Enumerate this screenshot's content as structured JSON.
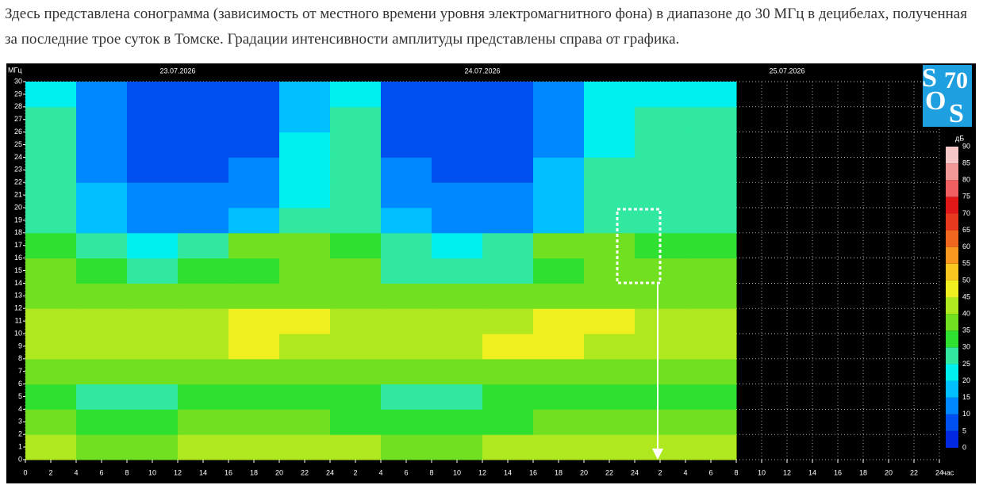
{
  "intro": "Здесь представлена сонограмма (зависимость от местного времени уровня электромагнитного фона) в диапазоне до 30 МГц в децибелах, полученная за последние трое суток в Томске. Градации интенсивности амплитуды представлены справа от графика.",
  "chart_data": {
    "type": "heatmap",
    "y_label": "МГц",
    "x_label": "час",
    "z_label": "дБ",
    "logo": [
      "S",
      "70",
      "O",
      "S"
    ],
    "date_labels": [
      {
        "value": 12,
        "label": "23.07.2026"
      },
      {
        "value": 36,
        "label": "24.07.2026"
      },
      {
        "value": 60,
        "label": "25.07.2026"
      }
    ],
    "xlim": [
      0,
      72
    ],
    "ylim": [
      0,
      30
    ],
    "grid": true,
    "xticks": [
      0,
      2,
      4,
      6,
      8,
      10,
      12,
      14,
      16,
      18,
      20,
      22,
      24,
      {
        "value": 26,
        "label": "2"
      },
      {
        "value": 28,
        "label": "4"
      },
      {
        "value": 30,
        "label": "6"
      },
      {
        "value": 32,
        "label": "8"
      },
      {
        "value": 34,
        "label": "10"
      },
      {
        "value": 36,
        "label": "12"
      },
      {
        "value": 38,
        "label": "14"
      },
      {
        "value": 40,
        "label": "16"
      },
      {
        "value": 42,
        "label": "18"
      },
      {
        "value": 44,
        "label": "20"
      },
      {
        "value": 46,
        "label": "22"
      },
      {
        "value": 48,
        "label": "24"
      },
      {
        "value": 50,
        "label": "2"
      },
      {
        "value": 52,
        "label": "4"
      },
      {
        "value": 54,
        "label": "6"
      },
      {
        "value": 56,
        "label": "8"
      },
      {
        "value": 58,
        "label": "10"
      },
      {
        "value": 60,
        "label": "12"
      },
      {
        "value": 62,
        "label": "14"
      },
      {
        "value": 64,
        "label": "16"
      },
      {
        "value": 66,
        "label": "18"
      },
      {
        "value": 68,
        "label": "20"
      },
      {
        "value": 70,
        "label": "22"
      },
      {
        "value": 72,
        "label": "24"
      }
    ],
    "yticks": [
      0,
      1,
      2,
      3,
      4,
      5,
      6,
      7,
      8,
      9,
      10,
      11,
      12,
      13,
      14,
      15,
      16,
      17,
      18,
      19,
      20,
      21,
      22,
      23,
      24,
      25,
      26,
      27,
      28,
      29,
      30
    ],
    "x_edges": [
      0,
      4,
      8,
      12,
      16,
      20,
      24,
      28,
      32,
      36,
      40,
      44,
      48,
      52,
      56
    ],
    "y_edges": [
      0,
      2,
      4,
      6,
      8,
      10,
      12,
      14,
      16,
      18,
      20,
      22,
      24,
      26,
      28,
      30
    ],
    "values": [
      [
        40,
        38,
        38,
        40,
        42,
        40,
        40,
        38,
        38,
        40,
        40,
        42,
        40,
        40
      ],
      [
        35,
        32,
        33,
        35,
        36,
        35,
        34,
        32,
        33,
        34,
        35,
        36,
        35,
        35
      ],
      [
        30,
        28,
        28,
        30,
        32,
        30,
        30,
        28,
        28,
        30,
        30,
        32,
        30,
        30
      ],
      [
        38,
        36,
        35,
        36,
        38,
        38,
        38,
        36,
        35,
        36,
        38,
        38,
        38,
        38
      ],
      [
        40,
        40,
        42,
        42,
        45,
        42,
        40,
        40,
        42,
        45,
        45,
        42,
        40,
        40
      ],
      [
        42,
        40,
        40,
        42,
        45,
        45,
        42,
        40,
        40,
        42,
        45,
        45,
        42,
        42
      ],
      [
        38,
        35,
        35,
        38,
        38,
        38,
        38,
        35,
        35,
        38,
        38,
        38,
        38,
        38
      ],
      [
        35,
        30,
        28,
        30,
        32,
        35,
        35,
        28,
        25,
        28,
        30,
        35,
        35,
        35
      ],
      [
        32,
        25,
        22,
        25,
        35,
        38,
        32,
        25,
        22,
        25,
        35,
        38,
        32,
        32
      ],
      [
        28,
        18,
        12,
        12,
        15,
        25,
        28,
        15,
        12,
        12,
        18,
        25,
        28,
        28
      ],
      [
        28,
        15,
        10,
        10,
        12,
        22,
        28,
        12,
        10,
        10,
        15,
        25,
        28,
        28
      ],
      [
        26,
        12,
        8,
        8,
        10,
        22,
        26,
        10,
        8,
        8,
        15,
        25,
        26,
        26
      ],
      [
        25,
        10,
        6,
        6,
        8,
        20,
        25,
        8,
        6,
        6,
        12,
        22,
        25,
        25
      ],
      [
        25,
        10,
        6,
        6,
        8,
        18,
        25,
        8,
        6,
        6,
        12,
        22,
        25,
        25
      ],
      [
        24,
        10,
        5,
        5,
        8,
        18,
        24,
        8,
        5,
        5,
        10,
        20,
        24,
        24
      ]
    ],
    "zlim": [
      0,
      90
    ],
    "zticks": [
      0,
      5,
      10,
      15,
      20,
      25,
      30,
      35,
      40,
      45,
      50,
      55,
      60,
      65,
      70,
      75,
      80,
      85,
      90
    ],
    "colors": [
      "#0028e0",
      "#0050f0",
      "#0088ff",
      "#00c0ff",
      "#00f0f0",
      "#30e8a0",
      "#30e030",
      "#70e020",
      "#b0e820",
      "#f0f020",
      "#f8c820",
      "#f89820",
      "#f06820",
      "#e83820",
      "#e01818",
      "#f06060",
      "#f49898",
      "#f8c8c8",
      "#ffffff"
    ]
  }
}
